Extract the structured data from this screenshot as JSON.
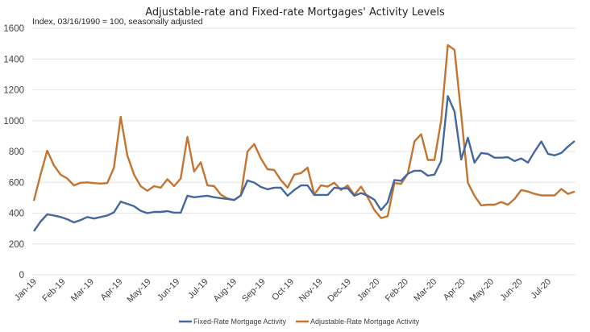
{
  "chart_data": {
    "type": "line",
    "title": "Adjustable-rate and Fixed-rate Mortgages' Activity Levels",
    "subtitle": "Index, 03/16/1990 = 100, seasonally adjusted",
    "xlabel": "",
    "ylabel": "",
    "ylim": [
      0,
      1600
    ],
    "yticks": [
      0,
      200,
      400,
      600,
      800,
      1000,
      1200,
      1400,
      1600
    ],
    "grid": true,
    "legend_position": "bottom",
    "x_tick_labels": [
      "Jan-19",
      "Feb-19",
      "Mar-19",
      "Apr-19",
      "May-19",
      "Jun-19",
      "Jul-19",
      "Aug-19",
      "Sep-19",
      "Oct-19",
      "Nov-19",
      "Dec-19",
      "Jan-20",
      "Feb-20",
      "Mar-20",
      "Apr-20",
      "May-20",
      "Jun-20",
      "Jul-20"
    ],
    "x_frequency": "weekly",
    "series": [
      {
        "name": "Fixed-Rate Mortgage Activity",
        "color": "#44679f",
        "values": [
          283,
          345,
          392,
          385,
          375,
          360,
          340,
          355,
          375,
          365,
          375,
          385,
          405,
          475,
          460,
          445,
          415,
          400,
          408,
          408,
          413,
          403,
          403,
          513,
          503,
          508,
          513,
          503,
          497,
          492,
          485,
          515,
          612,
          598,
          570,
          555,
          565,
          565,
          513,
          550,
          580,
          580,
          518,
          518,
          518,
          565,
          560,
          562,
          513,
          530,
          513,
          487,
          420,
          470,
          615,
          610,
          655,
          675,
          675,
          643,
          650,
          738,
          1160,
          1060,
          748,
          890,
          728,
          790,
          785,
          760,
          760,
          763,
          738,
          755,
          728,
          800,
          865,
          785,
          775,
          790,
          832,
          868
        ]
      },
      {
        "name": "Adjustable-Rate Mortgage Activity",
        "color": "#c5742f",
        "values": [
          480,
          650,
          805,
          710,
          650,
          625,
          580,
          597,
          600,
          595,
          592,
          595,
          695,
          1025,
          775,
          650,
          575,
          545,
          575,
          565,
          620,
          575,
          625,
          895,
          670,
          730,
          580,
          575,
          520,
          495,
          485,
          515,
          800,
          848,
          755,
          685,
          680,
          615,
          565,
          650,
          660,
          695,
          522,
          580,
          572,
          597,
          550,
          580,
          518,
          572,
          503,
          420,
          368,
          380,
          595,
          590,
          655,
          865,
          912,
          745,
          745,
          1000,
          1490,
          1460,
          1040,
          597,
          512,
          450,
          455,
          455,
          472,
          455,
          492,
          550,
          540,
          525,
          515,
          515,
          515,
          557,
          525,
          540
        ]
      }
    ]
  }
}
